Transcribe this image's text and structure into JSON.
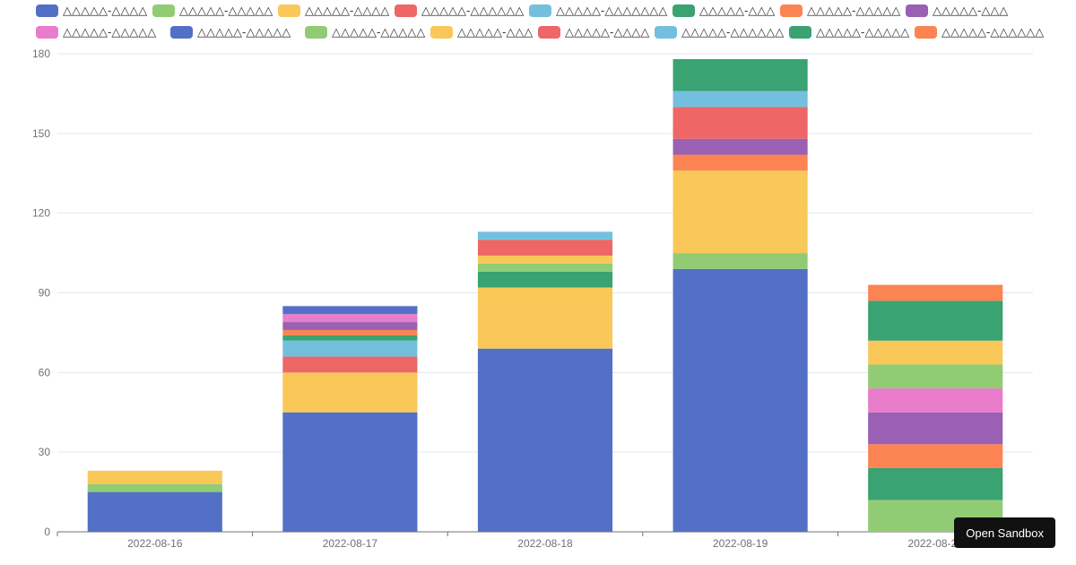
{
  "chart_data": {
    "type": "bar",
    "stacked": true,
    "categories": [
      "2022-08-16",
      "2022-08-17",
      "2022-08-18",
      "2022-08-19",
      "2022-08-20"
    ],
    "ylim": [
      0,
      180
    ],
    "yticks": [
      0,
      30,
      60,
      90,
      120,
      150,
      180
    ],
    "grid": true,
    "legend_position": "top",
    "series": [
      {
        "name": "△△△△△-△△△△",
        "color": "#5470c6",
        "values": [
          15,
          45,
          69,
          99,
          0
        ]
      },
      {
        "name": "△△△△△-△△△△△",
        "color": "#91cc75",
        "values": [
          3,
          0,
          0,
          6,
          12
        ]
      },
      {
        "name": "△△△△△-△△△△",
        "color": "#fac858",
        "values": [
          5,
          15,
          23,
          31,
          0
        ]
      },
      {
        "name": "△△△△△-△△△△△△",
        "color": "#ee6666",
        "values": [
          0,
          6,
          0,
          0,
          0
        ]
      },
      {
        "name": "△△△△△-△△△△△△△",
        "color": "#73c0de",
        "values": [
          0,
          6,
          0,
          0,
          0
        ]
      },
      {
        "name": "△△△△△-△△△",
        "color": "#3ba272",
        "values": [
          0,
          2,
          6,
          0,
          12
        ]
      },
      {
        "name": "△△△△△-△△△△△",
        "color": "#fc8452",
        "values": [
          0,
          2,
          0,
          6,
          9
        ]
      },
      {
        "name": "△△△△△-△△△",
        "color": "#9a60b4",
        "values": [
          0,
          3,
          0,
          6,
          12
        ]
      },
      {
        "name": "△△△△△-△△△△△",
        "color": "#ea7ccc",
        "values": [
          0,
          3,
          0,
          0,
          9
        ]
      },
      {
        "name": "△△△△△-△△△△△",
        "color": "#5470c6",
        "values": [
          0,
          3,
          0,
          0,
          0
        ]
      },
      {
        "name": "△△△△△-△△△△△",
        "color": "#91cc75",
        "values": [
          0,
          0,
          3,
          0,
          9
        ]
      },
      {
        "name": "△△△△△-△△△",
        "color": "#fac858",
        "values": [
          0,
          0,
          3,
          0,
          9
        ]
      },
      {
        "name": "△△△△△-△△△△",
        "color": "#ee6666",
        "values": [
          0,
          0,
          6,
          12,
          0
        ]
      },
      {
        "name": "△△△△△-△△△△△△",
        "color": "#73c0de",
        "values": [
          0,
          0,
          3,
          6,
          0
        ]
      },
      {
        "name": "△△△△△-△△△△△",
        "color": "#3ba272",
        "values": [
          0,
          0,
          0,
          12,
          15
        ]
      },
      {
        "name": "△△△△△-△△△△△△",
        "color": "#fc8452",
        "values": [
          0,
          0,
          0,
          0,
          6
        ]
      }
    ]
  },
  "ui": {
    "open_sandbox_label": "Open Sandbox"
  }
}
